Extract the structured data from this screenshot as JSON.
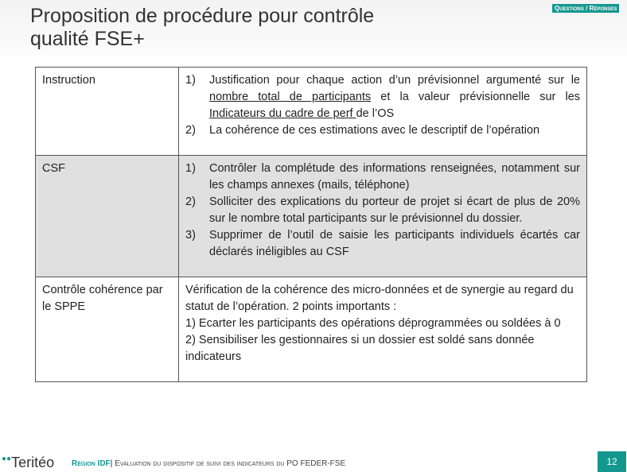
{
  "header": {
    "title_line1": "Proposition de procédure pour contrôle",
    "title_line2": "qualité FSE+",
    "badge": "Questions / Réponses"
  },
  "table": {
    "rows": [
      {
        "label": "Instruction",
        "items": [
          {
            "n": "1)",
            "pre": "Justification pour chaque action d’un prévisionnel argumenté sur le ",
            "u1": "nombre total de participants",
            "mid": " et la valeur prévisionnelle sur les ",
            "u2": "Indicateurs du cadre de perf ",
            "post": "de l’OS"
          },
          {
            "n": "2)",
            "text": "La cohérence de ces estimations avec le descriptif de l’opération"
          }
        ]
      },
      {
        "label": "CSF",
        "items": [
          {
            "n": "1)",
            "text": "Contrôler la complétude des informations renseignées, notamment sur les champs annexes (mails, téléphone)"
          },
          {
            "n": "2)",
            "text": "Solliciter des explications du porteur de projet si écart de plus de 20% sur le nombre total participants sur le prévisionnel du dossier."
          },
          {
            "n": "3)",
            "text": "Supprimer de l’outil de saisie les participants individuels écartés car déclarés inéligibles au CSF"
          }
        ]
      },
      {
        "label": "Contrôle cohérence par le SPPE",
        "lines": [
          "Vérification de la cohérence des micro-données et de synergie au regard du statut de l’opération. 2 points importants :",
          "1) Ecarter les participants des opérations déprogrammées ou soldées à 0",
          "2) Sensibiliser les gestionnaires si un dossier est soldé sans donnée indicateurs"
        ]
      }
    ]
  },
  "footer": {
    "logo": "Teritéo",
    "region": "Région IDF",
    "sep": "|",
    "text": " Evaluation du dispositif de suivi des indicateurs du PO FEDER-FSE",
    "page": "12"
  },
  "colors": {
    "accent": "#14978f"
  }
}
